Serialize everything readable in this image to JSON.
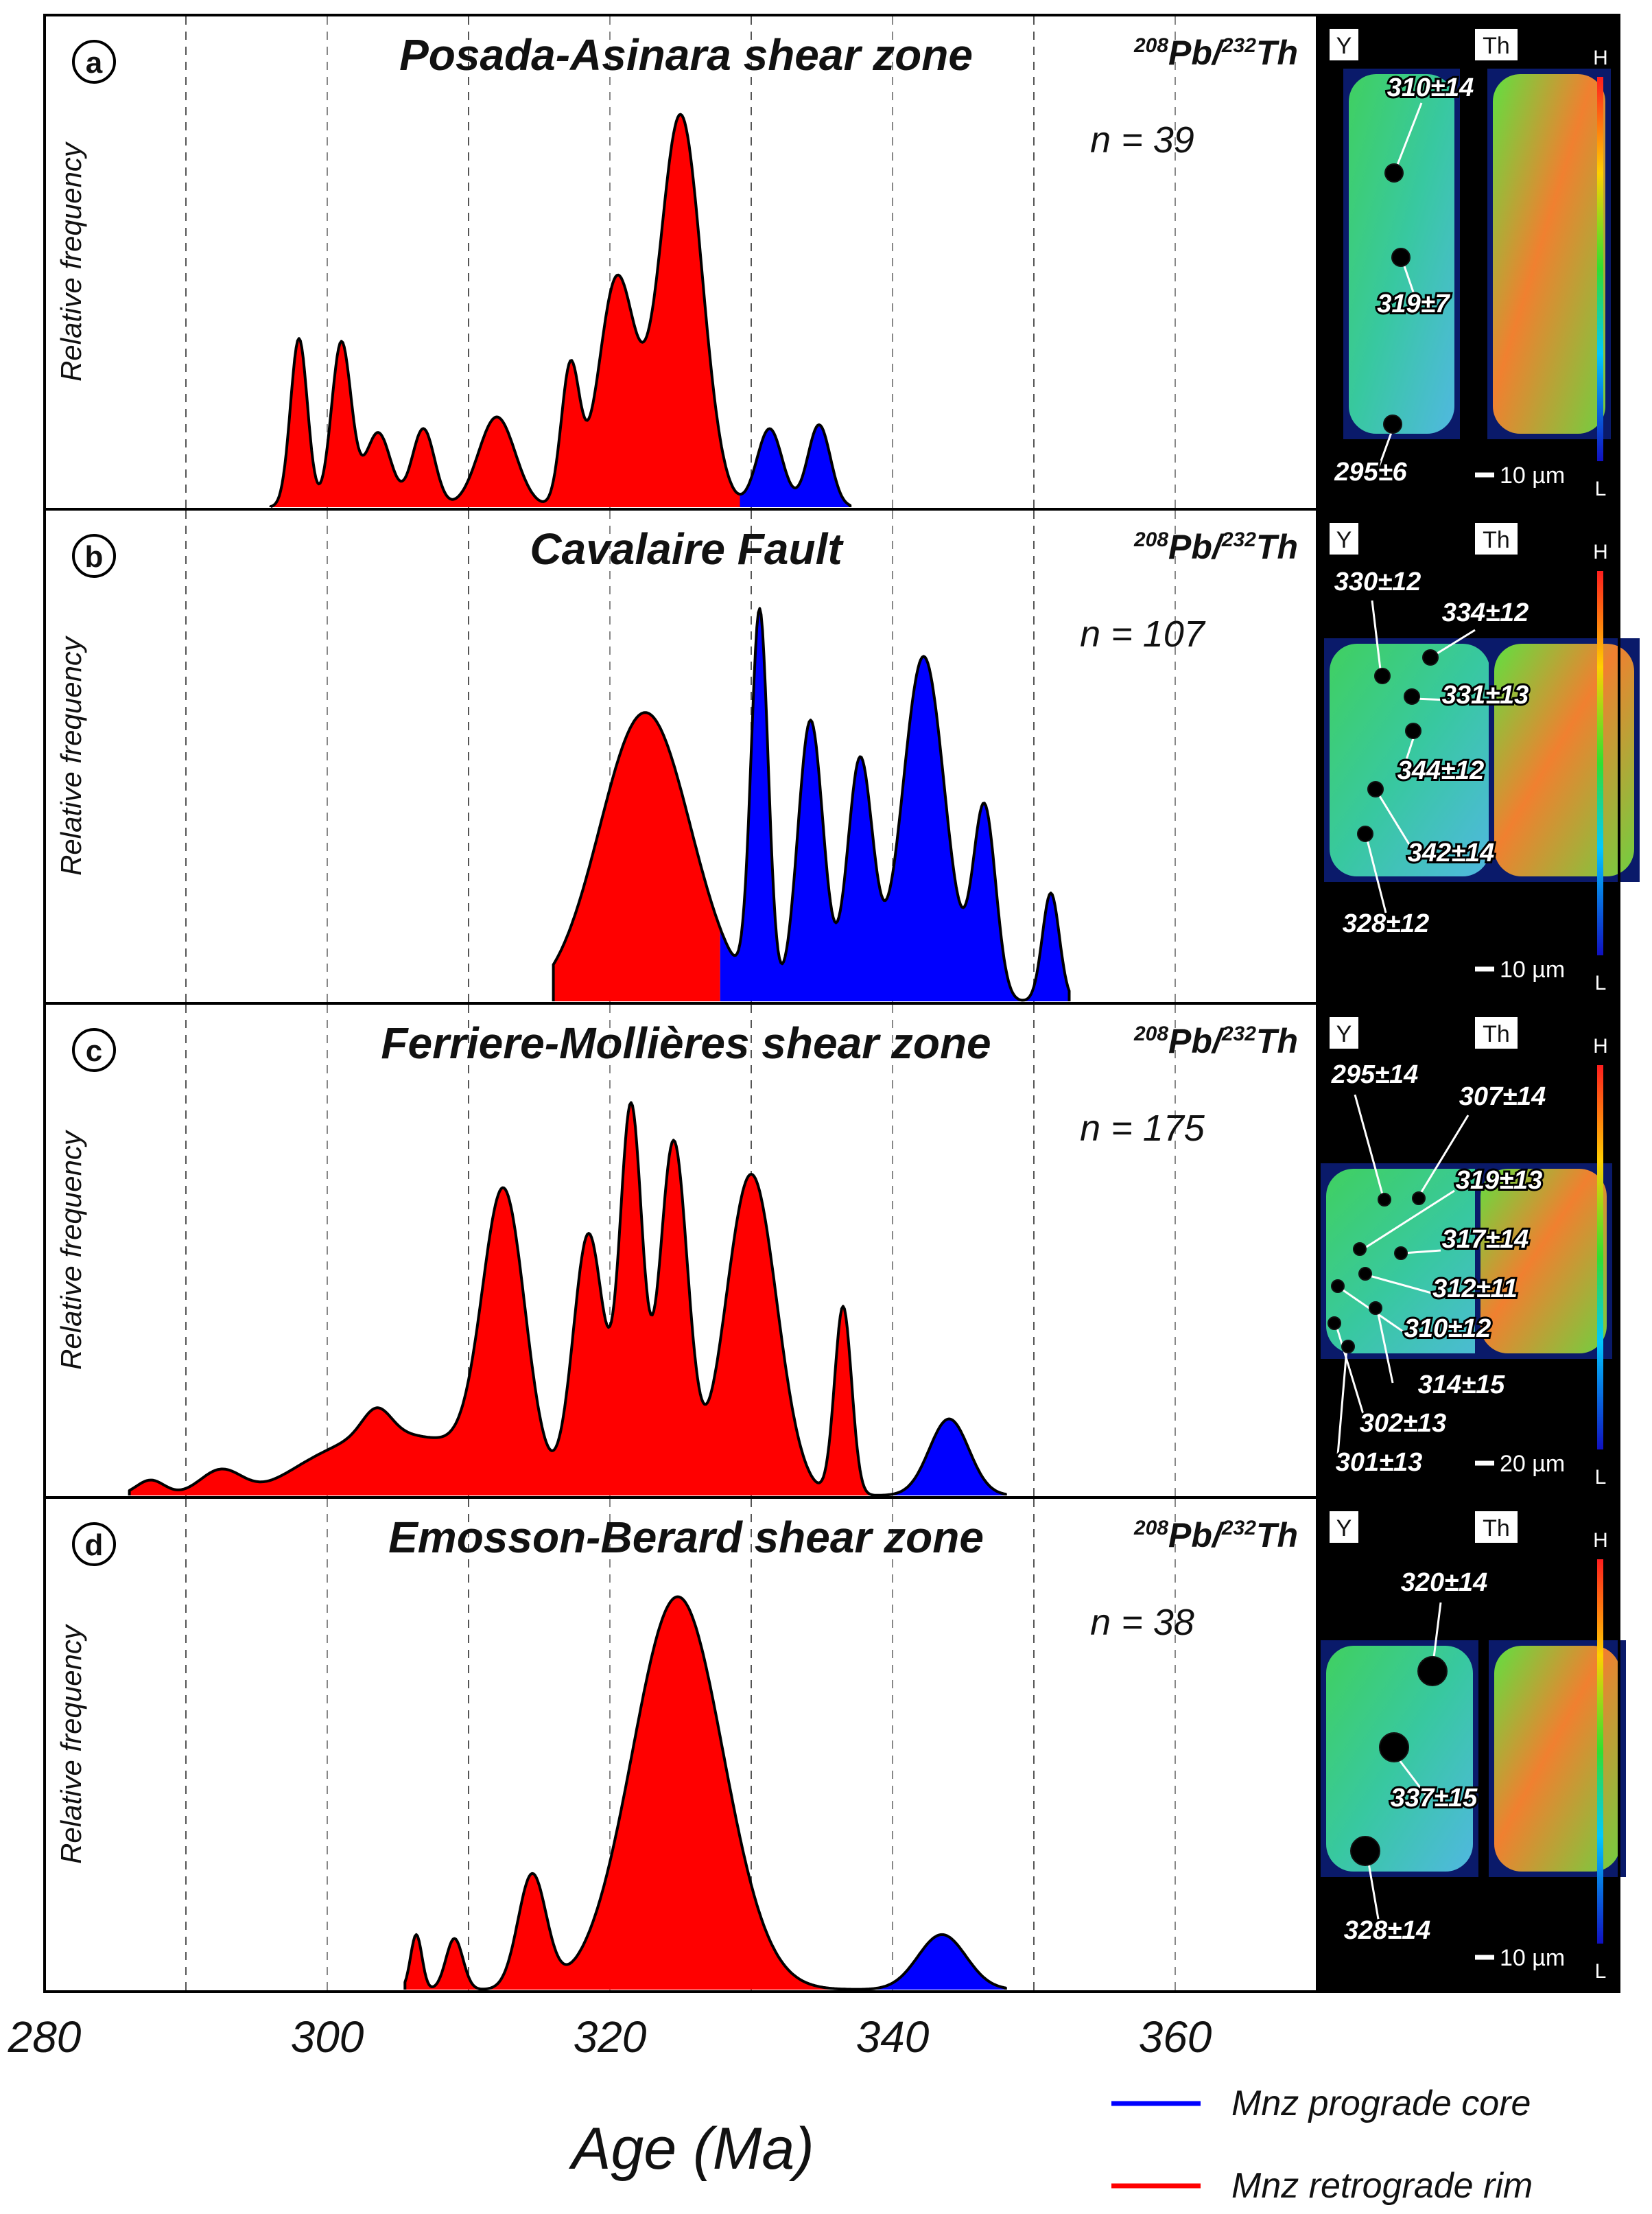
{
  "figure": {
    "x_axis_label": "Age (Ma)",
    "legend": [
      {
        "label": "Mnz prograde core",
        "color": "#0000ff"
      },
      {
        "label": "Mnz retrograde rim",
        "color": "#ff0000"
      }
    ],
    "y_axis_label": "Relative frequency",
    "isotope_label": {
      "sup1": "208",
      "text1": "Pb/",
      "sup2": "232",
      "text2": "Th"
    },
    "map_labels": {
      "y": "Y",
      "th": "Th",
      "high": "H",
      "low": "L"
    }
  },
  "chart_data": {
    "type": "area",
    "xlim": [
      280,
      372
    ],
    "x_ticks": [
      280,
      300,
      320,
      340,
      360
    ],
    "x_gridlines": [
      290,
      300,
      310,
      320,
      330,
      340,
      350,
      360
    ],
    "panels": [
      {
        "letter": "a",
        "title": "Posada-Asinara shear zone",
        "n_label": "n = 39",
        "split_age": 329.2,
        "peaks": [
          [
            298,
            0.43,
            0.6
          ],
          [
            301,
            0.42,
            0.7
          ],
          [
            303.6,
            0.19,
            0.9
          ],
          [
            306.8,
            0.2,
            0.8
          ],
          [
            312,
            0.23,
            1.3
          ],
          [
            317.2,
            0.35,
            0.65
          ],
          [
            320.5,
            0.58,
            1.3
          ],
          [
            325,
            1.0,
            1.5
          ],
          [
            331.3,
            0.2,
            0.9
          ],
          [
            334.8,
            0.21,
            0.8
          ]
        ],
        "xmin": 296,
        "xmax": 337,
        "images": {
          "scale_bar": "10 µm",
          "ages": [
            "310±14",
            "319±7",
            "295±6"
          ]
        }
      },
      {
        "letter": "b",
        "title": "Cavalaire Fault",
        "n_label": "n = 107",
        "split_age": 327.8,
        "peaks": [
          [
            322.5,
            0.72,
            3.2
          ],
          [
            330.6,
            0.95,
            0.6
          ],
          [
            334.2,
            0.7,
            0.9
          ],
          [
            337.7,
            0.6,
            0.9
          ],
          [
            342.2,
            0.86,
            1.5
          ],
          [
            346.5,
            0.48,
            0.8
          ],
          [
            351.2,
            0.27,
            0.6
          ]
        ],
        "xmin": 316,
        "xmax": 352.5,
        "images": {
          "scale_bar": "10 µm",
          "ages": [
            "330±12",
            "334±12",
            "331±13",
            "344±12",
            "342±14",
            "328±12"
          ]
        }
      },
      {
        "letter": "c",
        "title": "Ferriere-Mollières shear zone",
        "n_label": "n = 175",
        "split_age": 340,
        "peaks": [
          [
            287.5,
            0.03,
            1.0
          ],
          [
            292.5,
            0.05,
            1.5
          ],
          [
            299,
            0.05,
            2.5
          ],
          [
            303,
            0.06,
            2.5
          ],
          [
            303.5,
            0.05,
            1.0
          ],
          [
            308,
            0.1,
            4.0
          ],
          [
            312.5,
            0.55,
            1.5
          ],
          [
            318.5,
            0.51,
            1.1
          ],
          [
            321.5,
            0.75,
            0.8
          ],
          [
            324.5,
            0.69,
            1.0
          ],
          [
            330,
            0.63,
            1.8
          ],
          [
            336.5,
            0.37,
            0.6
          ],
          [
            344,
            0.15,
            1.4
          ]
        ],
        "xmin": 286,
        "xmax": 348,
        "images": {
          "scale_bar": "20 µm",
          "ages": [
            "295±14",
            "307±14",
            "319±13",
            "317±14",
            "312±11",
            "310±12",
            "314±15",
            "302±13",
            "301±13"
          ]
        }
      },
      {
        "letter": "d",
        "title": "Emosson-Berard shear zone",
        "n_label": "n = 38",
        "split_age": 337.7,
        "peaks": [
          [
            306.3,
            0.14,
            0.4
          ],
          [
            309,
            0.13,
            0.6
          ],
          [
            314.5,
            0.29,
            1.0
          ],
          [
            324.8,
            1.0,
            3.2
          ],
          [
            343.5,
            0.14,
            1.7
          ]
        ],
        "xmin": 305.5,
        "xmax": 348,
        "images": {
          "scale_bar": "10 µm",
          "ages": [
            "320±14",
            "337±15",
            "328±14"
          ]
        }
      }
    ]
  }
}
